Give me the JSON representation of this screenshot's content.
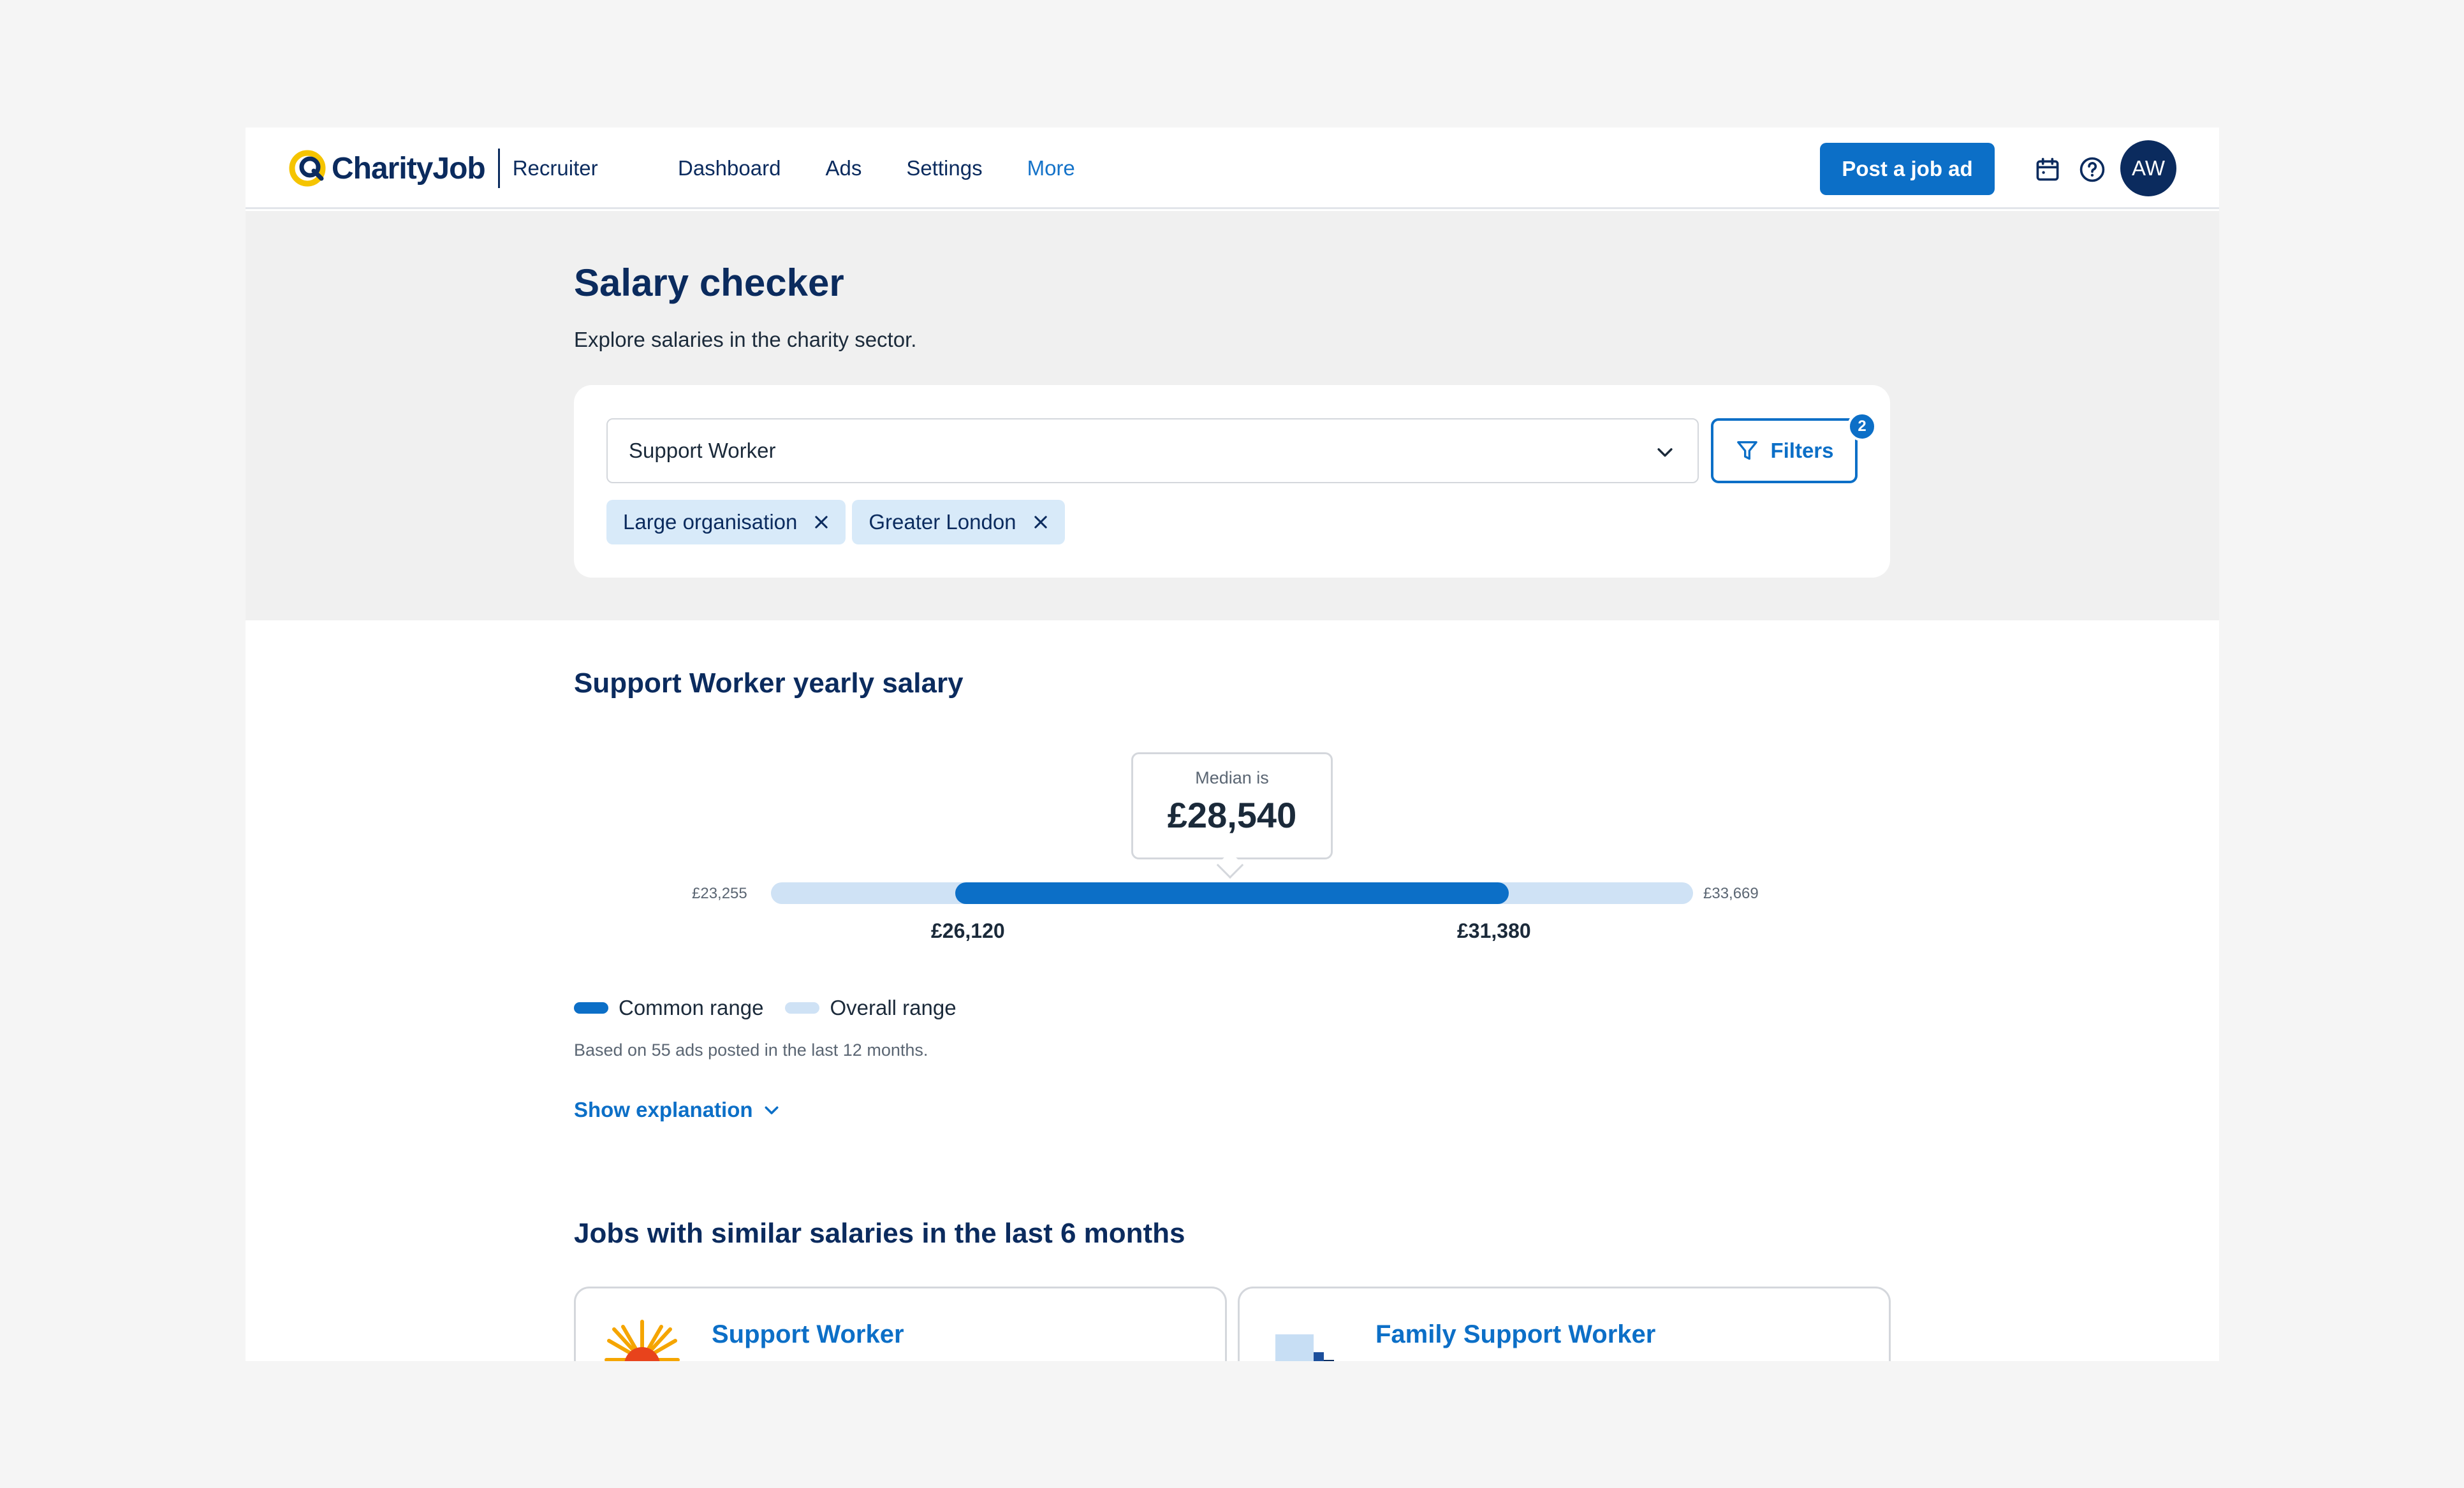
{
  "app": {
    "brand": "CharityJob",
    "brand_sub": "Recruiter"
  },
  "nav": {
    "links": [
      "Dashboard",
      "Ads",
      "Settings",
      "More"
    ],
    "active": "More",
    "post_button": "Post a job ad",
    "icons": [
      "calendar-icon",
      "help-icon"
    ],
    "avatar_initials": "AW"
  },
  "header": {
    "title": "Salary checker",
    "subtitle": "Explore salaries in the charity sector."
  },
  "search": {
    "role_value": "Support Worker",
    "filters_label": "Filters",
    "filters_count": "2",
    "chips": [
      "Large organisation",
      "Greater London"
    ]
  },
  "salary": {
    "title": "Support Worker yearly salary",
    "median_label": "Median is",
    "median_value": "£28,540",
    "overall_min": "£23,255",
    "overall_max": "£33,669",
    "common_low": "£26,120",
    "common_high": "£31,380",
    "legend_common": "Common range",
    "legend_overall": "Overall range",
    "based_on": "Based on 55 ads posted in the last 12 months.",
    "show_explanation": "Show explanation"
  },
  "similar": {
    "title": "Jobs with similar salaries in the last 6 months",
    "jobs": [
      {
        "title": "Support Worker",
        "logo": "sunburst-logo-icon"
      },
      {
        "title": "Family Support Worker",
        "logo": "blue-blocks-logo-icon"
      }
    ]
  },
  "colors": {
    "primary": "#0c6fc7",
    "navy": "#0b2b5e",
    "range_light": "#cfe2f5",
    "chip_bg": "#d8eaf9",
    "logo_yellow": "#f5c400"
  }
}
